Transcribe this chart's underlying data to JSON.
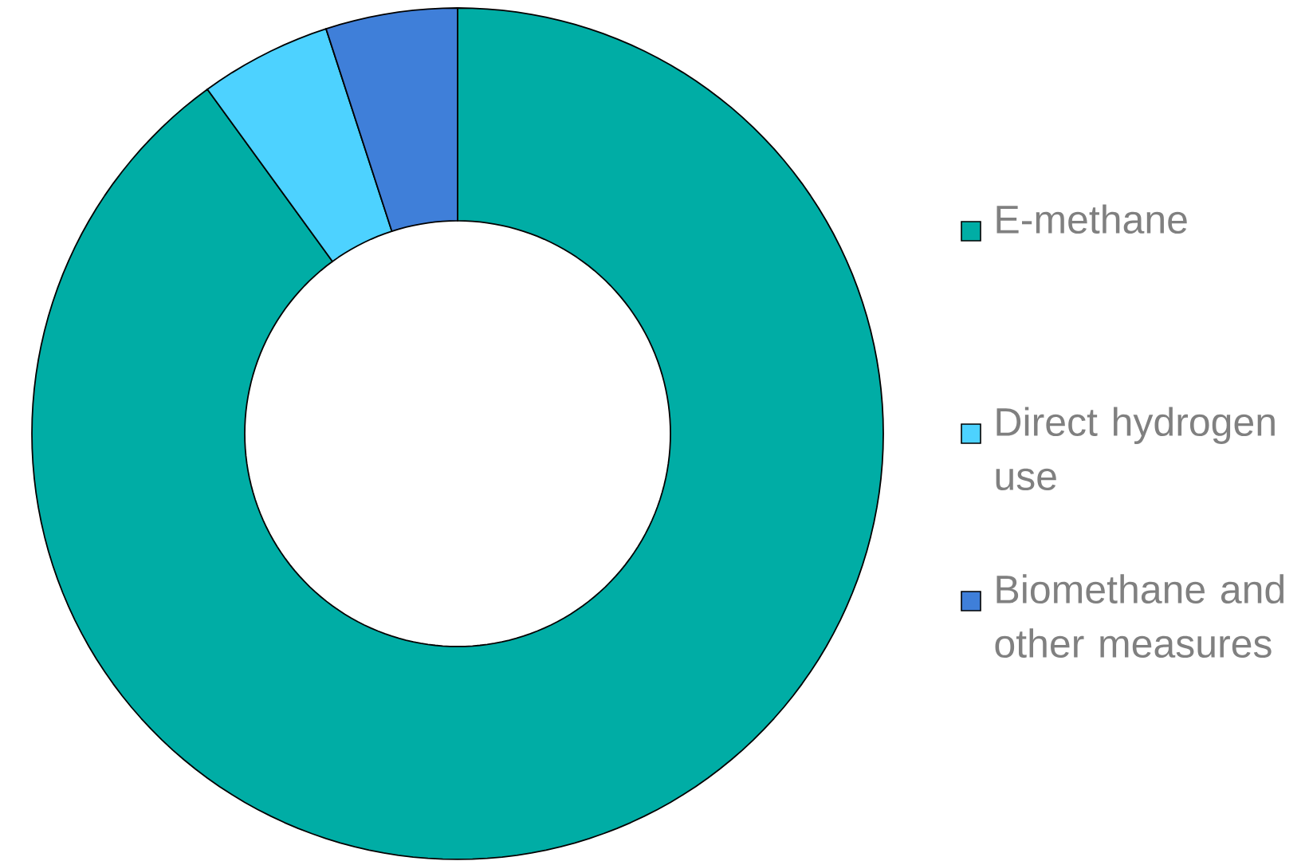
{
  "chart_data": {
    "type": "donut",
    "categories": [
      "E-methane",
      "Direct hydrogen use",
      "Biomethane and other measures"
    ],
    "values": [
      90,
      5,
      5
    ],
    "colors": [
      "#00ada5",
      "#4dd2ff",
      "#3f7fd9"
    ],
    "legend": "right"
  }
}
